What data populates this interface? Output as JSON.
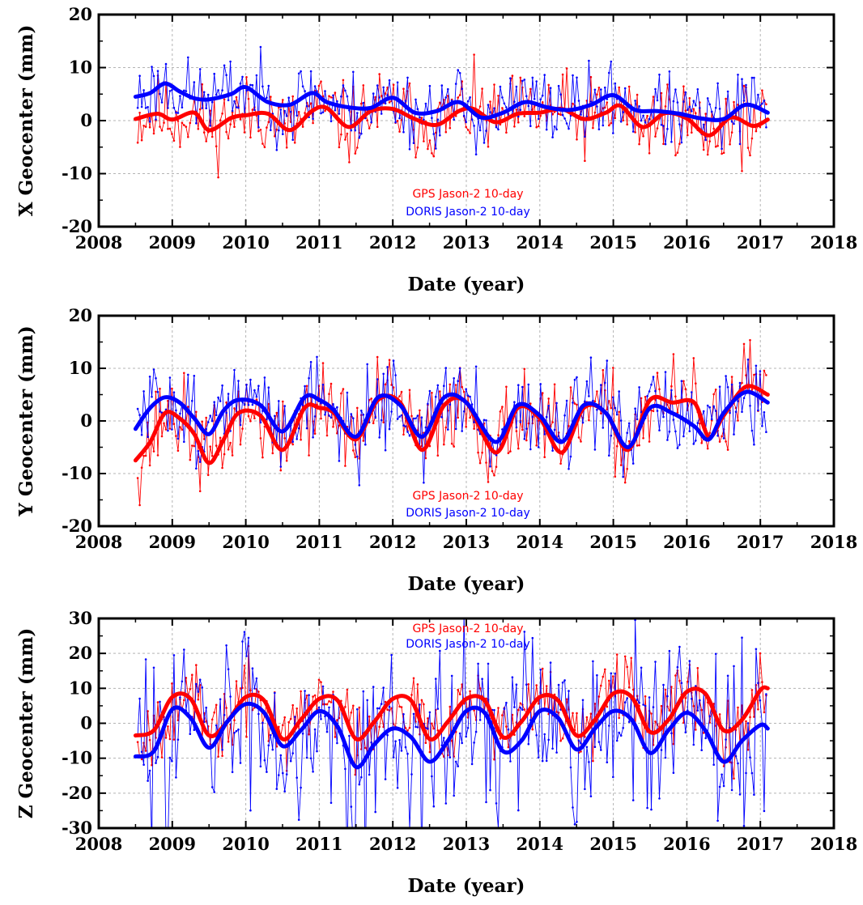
{
  "colors": {
    "gps": "#ff0000",
    "doris": "#0000ff",
    "grid": "#b4b4b4"
  },
  "chart_data": [
    {
      "type": "line",
      "title": "",
      "xlabel": "Date (year)",
      "ylabel": "X Geocenter (mm)",
      "xlim": [
        2008,
        2018
      ],
      "ylim": [
        -20,
        20
      ],
      "xticks": [
        "2008",
        "2009",
        "2010",
        "2011",
        "2012",
        "2013",
        "2014",
        "2015",
        "2016",
        "2017",
        "2018"
      ],
      "yticks": [
        "20",
        "10",
        "0",
        "-10",
        "-20"
      ],
      "grid": true,
      "legend": {
        "placement": "bottom-center",
        "entries": [
          "GPS Jason-2 10-day",
          "DORIS Jason-2 10-day"
        ]
      },
      "series": [
        {
          "name": "GPS Jason-2 10-day",
          "color": "#ff0000",
          "raw_mean": 0.5,
          "raw_amp": 3.6,
          "seed": 11,
          "smooth_x": [
            2008.5,
            2008.8,
            2009.0,
            2009.3,
            2009.5,
            2009.8,
            2010.0,
            2010.3,
            2010.6,
            2010.9,
            2011.1,
            2011.4,
            2011.7,
            2012.0,
            2012.3,
            2012.6,
            2012.9,
            2013.1,
            2013.4,
            2013.7,
            2014.0,
            2014.3,
            2014.6,
            2014.9,
            2015.1,
            2015.4,
            2015.7,
            2016.0,
            2016.3,
            2016.6,
            2016.9,
            2017.1
          ],
          "smooth_y": [
            0.3,
            1.3,
            0.2,
            1.5,
            -1.8,
            0.5,
            1.0,
            1.3,
            -1.8,
            1.8,
            2.4,
            -1.2,
            1.8,
            2.2,
            0.3,
            -0.8,
            1.8,
            2.2,
            -0.3,
            1.3,
            1.5,
            2.2,
            0.3,
            1.5,
            2.8,
            -1.2,
            1.4,
            0.4,
            -2.8,
            0.6,
            -1.0,
            0.2
          ]
        },
        {
          "name": "DORIS Jason-2 10-day",
          "color": "#0000ff",
          "raw_mean": 2.5,
          "raw_amp": 3.4,
          "seed": 23,
          "smooth_x": [
            2008.5,
            2008.7,
            2008.9,
            2009.1,
            2009.3,
            2009.5,
            2009.8,
            2010.0,
            2010.3,
            2010.6,
            2010.9,
            2011.1,
            2011.4,
            2011.7,
            2012.0,
            2012.3,
            2012.6,
            2012.9,
            2013.2,
            2013.5,
            2013.8,
            2014.1,
            2014.4,
            2014.7,
            2015.0,
            2015.3,
            2015.6,
            2015.9,
            2016.2,
            2016.5,
            2016.8,
            2017.1
          ],
          "smooth_y": [
            4.5,
            5.2,
            7.0,
            5.5,
            4.2,
            4.0,
            5.0,
            6.3,
            3.5,
            3.0,
            5.2,
            3.5,
            2.5,
            2.4,
            4.3,
            1.5,
            1.8,
            3.5,
            0.6,
            1.5,
            3.5,
            2.5,
            2.0,
            3.0,
            4.8,
            2.0,
            1.8,
            1.3,
            0.4,
            0.3,
            3.0,
            1.5
          ]
        }
      ]
    },
    {
      "type": "line",
      "title": "",
      "xlabel": "Date (year)",
      "ylabel": "Y Geocenter (mm)",
      "xlim": [
        2008,
        2018
      ],
      "ylim": [
        -20,
        20
      ],
      "xticks": [
        "2008",
        "2009",
        "2010",
        "2011",
        "2012",
        "2013",
        "2014",
        "2015",
        "2016",
        "2017",
        "2018"
      ],
      "yticks": [
        "20",
        "10",
        "0",
        "-10",
        "-20"
      ],
      "grid": true,
      "legend": {
        "placement": "bottom-center",
        "entries": [
          "GPS Jason-2 10-day",
          "DORIS Jason-2 10-day"
        ]
      },
      "series": [
        {
          "name": "GPS Jason-2 10-day",
          "color": "#ff0000",
          "raw_mean": 0,
          "raw_amp": 4.2,
          "seed": 37,
          "smooth_x": [
            2008.5,
            2008.7,
            2008.9,
            2009.1,
            2009.3,
            2009.5,
            2009.7,
            2009.9,
            2010.2,
            2010.5,
            2010.8,
            2011.0,
            2011.2,
            2011.5,
            2011.8,
            2012.1,
            2012.4,
            2012.7,
            2013.0,
            2013.4,
            2013.7,
            2014.0,
            2014.3,
            2014.6,
            2014.9,
            2015.2,
            2015.5,
            2015.8,
            2016.1,
            2016.3,
            2016.5,
            2016.8,
            2017.1
          ],
          "smooth_y": [
            -7.5,
            -4.0,
            1.5,
            0.5,
            -2.5,
            -8.0,
            -3.5,
            1.5,
            1.0,
            -5.5,
            2.5,
            2.5,
            1.5,
            -3.5,
            4.0,
            3.5,
            -5.5,
            3.0,
            3.5,
            -6.0,
            2.5,
            0.5,
            -6.0,
            2.5,
            1.5,
            -5.5,
            4.0,
            3.5,
            3.5,
            -3.0,
            1.0,
            6.5,
            5.0
          ]
        },
        {
          "name": "DORIS Jason-2 10-day",
          "color": "#0000ff",
          "raw_mean": 0.5,
          "raw_amp": 4.0,
          "seed": 51,
          "smooth_x": [
            2008.5,
            2008.7,
            2008.9,
            2009.1,
            2009.3,
            2009.5,
            2009.7,
            2009.9,
            2010.2,
            2010.5,
            2010.8,
            2011.0,
            2011.2,
            2011.5,
            2011.8,
            2012.1,
            2012.4,
            2012.7,
            2013.0,
            2013.4,
            2013.7,
            2014.0,
            2014.3,
            2014.6,
            2014.9,
            2015.2,
            2015.5,
            2015.8,
            2016.1,
            2016.3,
            2016.5,
            2016.8,
            2017.1
          ],
          "smooth_y": [
            -1.5,
            2.5,
            4.5,
            3.5,
            0.5,
            -2.5,
            2.0,
            4.0,
            3.0,
            -2.0,
            4.5,
            4.0,
            2.0,
            -3.0,
            4.5,
            3.0,
            -3.0,
            4.5,
            3.5,
            -4.0,
            3.0,
            1.0,
            -4.0,
            3.0,
            1.5,
            -5.0,
            2.5,
            1.5,
            -1.0,
            -3.5,
            1.5,
            5.5,
            3.5
          ]
        }
      ]
    },
    {
      "type": "line",
      "title": "",
      "xlabel": "Date (year)",
      "ylabel": "Z Geocenter (mm)",
      "xlim": [
        2008,
        2018
      ],
      "ylim": [
        -30,
        30
      ],
      "xticks": [
        "2008",
        "2009",
        "2010",
        "2011",
        "2012",
        "2013",
        "2014",
        "2015",
        "2016",
        "2017",
        "2018"
      ],
      "yticks": [
        "30",
        "20",
        "10",
        "0",
        "-10",
        "-20",
        "-30"
      ],
      "grid": true,
      "legend": {
        "placement": "top-center",
        "entries": [
          "GPS Jason-2 10-day",
          "DORIS Jason-2 10-day"
        ]
      },
      "series": [
        {
          "name": "GPS Jason-2 10-day",
          "color": "#ff0000",
          "raw_mean": 2,
          "raw_amp": 5.5,
          "seed": 67,
          "smooth_x": [
            2008.5,
            2008.75,
            2009.0,
            2009.25,
            2009.5,
            2009.75,
            2010.0,
            2010.25,
            2010.5,
            2010.75,
            2011.0,
            2011.25,
            2011.5,
            2011.75,
            2012.0,
            2012.25,
            2012.5,
            2012.75,
            2013.0,
            2013.25,
            2013.5,
            2013.75,
            2014.0,
            2014.25,
            2014.5,
            2014.75,
            2015.0,
            2015.25,
            2015.5,
            2015.75,
            2016.0,
            2016.25,
            2016.5,
            2016.75,
            2017.0,
            2017.1
          ],
          "smooth_y": [
            -3.5,
            -2.0,
            7.5,
            7.0,
            -3.5,
            0.5,
            7.5,
            6.5,
            -4.5,
            1.0,
            7.0,
            6.5,
            -4.5,
            0.5,
            7.0,
            6.5,
            -4.5,
            0.5,
            7.0,
            6.5,
            -4.0,
            0.5,
            7.5,
            6.5,
            -3.5,
            1.0,
            8.5,
            7.5,
            -2.5,
            1.0,
            9.0,
            8.5,
            -2.0,
            1.0,
            9.5,
            10.0
          ]
        },
        {
          "name": "DORIS Jason-2 10-day",
          "color": "#0000ff",
          "raw_mean": -4,
          "raw_amp": 13,
          "seed": 83,
          "smooth_x": [
            2008.5,
            2008.75,
            2009.0,
            2009.25,
            2009.5,
            2009.75,
            2010.0,
            2010.25,
            2010.5,
            2010.75,
            2011.0,
            2011.25,
            2011.5,
            2011.75,
            2012.0,
            2012.25,
            2012.5,
            2012.75,
            2013.0,
            2013.25,
            2013.5,
            2013.75,
            2014.0,
            2014.25,
            2014.5,
            2014.75,
            2015.0,
            2015.25,
            2015.5,
            2015.75,
            2016.0,
            2016.25,
            2016.5,
            2016.75,
            2017.0,
            2017.1
          ],
          "smooth_y": [
            -9.5,
            -8.0,
            4.0,
            1.5,
            -7.0,
            0.5,
            5.5,
            3.0,
            -6.5,
            -2.0,
            3.5,
            -1.0,
            -12.5,
            -6.0,
            -1.5,
            -4.0,
            -11.0,
            -5.0,
            3.5,
            3.0,
            -8.0,
            -5.0,
            3.5,
            1.5,
            -7.5,
            -1.5,
            3.5,
            1.0,
            -8.5,
            -2.0,
            3.0,
            -2.0,
            -11.0,
            -5.0,
            -0.5,
            -1.5
          ]
        }
      ]
    }
  ]
}
